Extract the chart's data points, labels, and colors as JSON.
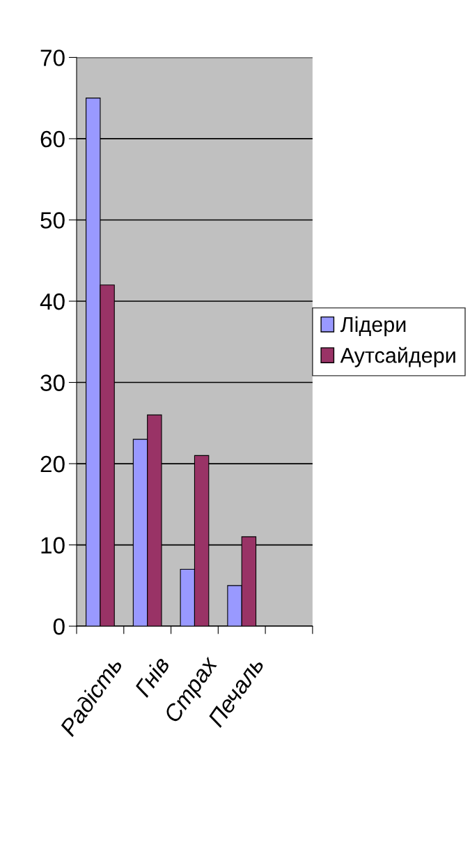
{
  "chart_data": {
    "type": "bar",
    "categories": [
      "Радість",
      "Гнів",
      "Страх",
      "Печаль",
      null
    ],
    "series": [
      {
        "name": "Лідери",
        "color": "#9999ff",
        "values": [
          65,
          23,
          7,
          5,
          null
        ]
      },
      {
        "name": "Аутсайдери",
        "color": "#993366",
        "values": [
          42,
          26,
          21,
          11,
          null
        ]
      }
    ],
    "ylim": [
      0,
      70
    ],
    "yticks": [
      0,
      10,
      20,
      30,
      40,
      50,
      60,
      70
    ],
    "grid": "y",
    "legend": "right"
  }
}
